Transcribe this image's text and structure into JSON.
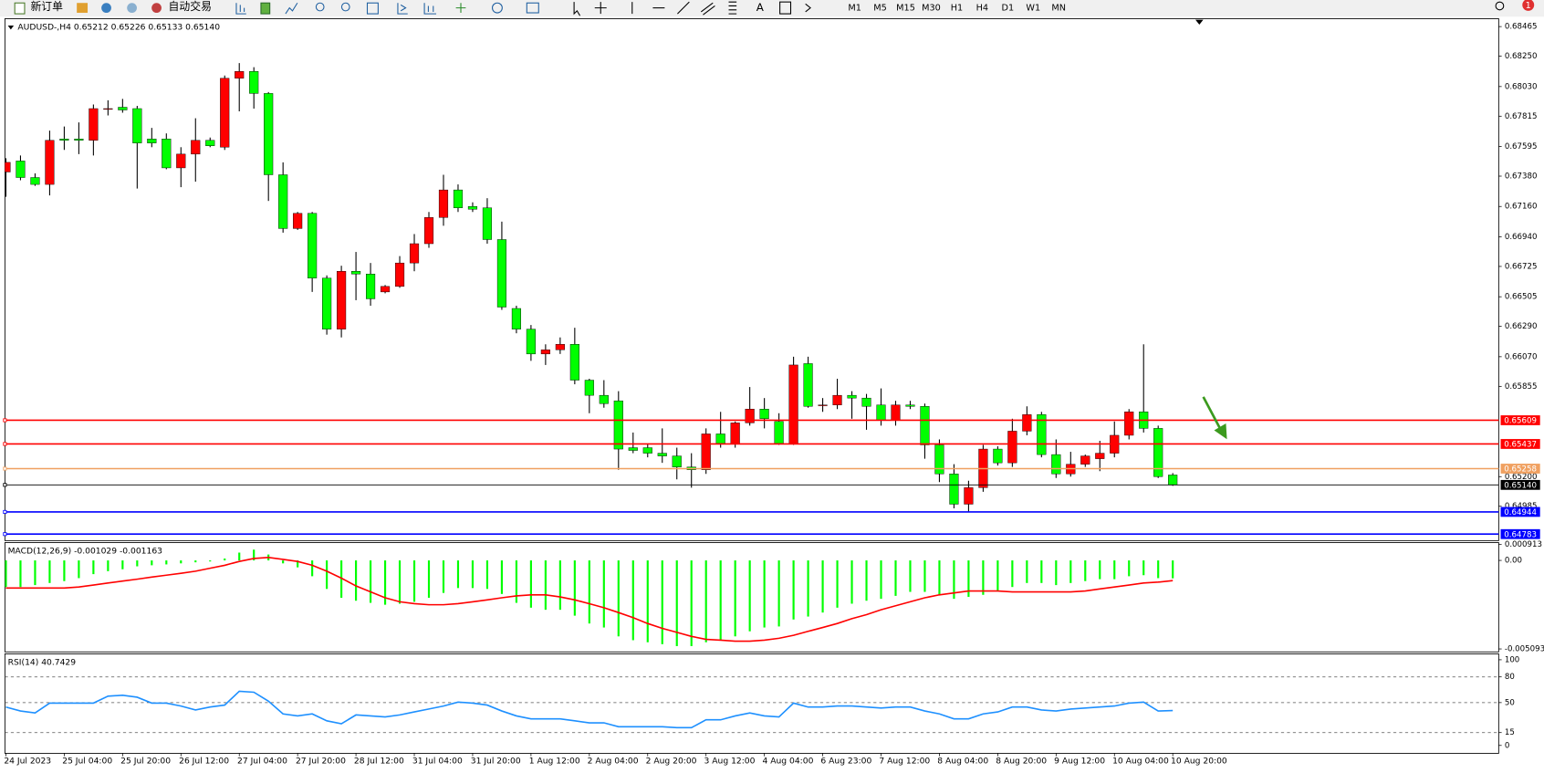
{
  "toolbar": {
    "new_order": "新订单",
    "auto_trading": "自动交易",
    "text_tool": "A",
    "timeframes": [
      "M1",
      "M5",
      "M15",
      "M30",
      "H1",
      "H4",
      "D1",
      "W1",
      "MN"
    ],
    "alerts": 1
  },
  "chart_data": [
    {
      "type": "candlestick",
      "title": "AUDUSD-,H4  0.65212 0.65226 0.65133 0.65140",
      "categories": [
        "24 Jul 2023",
        null,
        null,
        null,
        "25 Jul 04:00",
        null,
        null,
        null,
        "25 Jul 20:00",
        null,
        null,
        null,
        "26 Jul 12:00",
        null,
        null,
        null,
        "27 Jul 04:00",
        null,
        null,
        null,
        "27 Jul 20:00",
        null,
        null,
        null,
        "28 Jul 12:00",
        null,
        null,
        null,
        "31 Jul 04:00",
        null,
        null,
        null,
        "31 Jul 20:00",
        null,
        null,
        null,
        "1 Aug 12:00",
        null,
        null,
        null,
        "2 Aug 04:00",
        null,
        null,
        null,
        "2 Aug 20:00",
        null,
        null,
        null,
        "3 Aug 12:00",
        null,
        null,
        null,
        "4 Aug 04:00",
        null,
        null,
        null,
        "6 Aug 23:00",
        null,
        null,
        null,
        "7 Aug 12:00",
        null,
        null,
        null,
        "8 Aug 04:00",
        null,
        null,
        null,
        "8 Aug 20:00",
        null,
        null,
        null,
        "9 Aug 12:00",
        null,
        null,
        null,
        "10 Aug 04:00",
        null,
        null,
        null,
        "10 Aug 20:00"
      ],
      "open": [
        0.6741,
        0.6749,
        0.6737,
        0.6732,
        0.6765,
        0.6765,
        0.6764,
        0.6787,
        0.6788,
        0.6787,
        0.6765,
        0.6765,
        0.6744,
        0.6754,
        0.6764,
        0.6759,
        0.6809,
        0.6814,
        0.6798,
        0.6739,
        0.67,
        0.6711,
        0.6664,
        0.6627,
        0.6669,
        0.6667,
        0.6654,
        0.6658,
        0.6675,
        0.6689,
        0.6708,
        0.6728,
        0.6716,
        0.6715,
        0.6692,
        0.6642,
        0.6627,
        0.6609,
        0.6612,
        0.6616,
        0.659,
        0.6579,
        0.6575,
        0.6541,
        0.6541,
        0.6537,
        0.6535,
        0.6527,
        0.6525,
        0.6551,
        0.6544,
        0.6559,
        0.6569,
        0.656,
        0.6544,
        0.6602,
        0.6572,
        0.6572,
        0.6579,
        0.6577,
        0.6572,
        0.6561,
        0.6572,
        0.6571,
        0.6543,
        0.6522,
        0.65,
        0.6512,
        0.654,
        0.653,
        0.6553,
        0.6565,
        0.6536,
        0.6522,
        0.6529,
        0.6533,
        0.6537,
        0.655,
        0.6567,
        0.6555,
        0.65212
      ],
      "high": [
        0.6751,
        0.6753,
        0.674,
        0.6771,
        0.6774,
        0.6777,
        0.679,
        0.6793,
        0.6794,
        0.6789,
        0.6773,
        0.6769,
        0.6759,
        0.678,
        0.6766,
        0.6811,
        0.682,
        0.6817,
        0.6799,
        0.6748,
        0.6712,
        0.6712,
        0.6666,
        0.6673,
        0.6683,
        0.6675,
        0.6659,
        0.668,
        0.6696,
        0.6712,
        0.6739,
        0.6732,
        0.6719,
        0.6722,
        0.6705,
        0.6644,
        0.663,
        0.6616,
        0.6621,
        0.6628,
        0.6591,
        0.659,
        0.6582,
        0.6552,
        0.6544,
        0.6555,
        0.6541,
        0.6537,
        0.6555,
        0.6567,
        0.656,
        0.6585,
        0.6577,
        0.6566,
        0.6607,
        0.6607,
        0.6577,
        0.6591,
        0.6582,
        0.658,
        0.6584,
        0.6575,
        0.6575,
        0.6573,
        0.6547,
        0.6529,
        0.6517,
        0.6543,
        0.6542,
        0.6562,
        0.6571,
        0.6567,
        0.6547,
        0.6538,
        0.6536,
        0.6546,
        0.656,
        0.6569,
        0.6616,
        0.6557,
        0.65226
      ],
      "low": [
        0.6723,
        0.6735,
        0.6731,
        0.6724,
        0.6757,
        0.6754,
        0.6753,
        0.6782,
        0.6784,
        0.6729,
        0.6759,
        0.6743,
        0.673,
        0.6734,
        0.6759,
        0.6757,
        0.6785,
        0.6787,
        0.672,
        0.6697,
        0.6699,
        0.6654,
        0.6623,
        0.6621,
        0.6648,
        0.6644,
        0.6653,
        0.6657,
        0.6669,
        0.6686,
        0.6702,
        0.6712,
        0.6712,
        0.6689,
        0.6641,
        0.6624,
        0.6604,
        0.6601,
        0.6609,
        0.6587,
        0.6566,
        0.657,
        0.6525,
        0.6537,
        0.6534,
        0.653,
        0.6518,
        0.6512,
        0.6522,
        0.6541,
        0.6541,
        0.6557,
        0.6555,
        0.6543,
        0.6543,
        0.657,
        0.6567,
        0.6569,
        0.6562,
        0.6554,
        0.6557,
        0.6557,
        0.6569,
        0.6533,
        0.6516,
        0.6497,
        0.6494,
        0.6509,
        0.6528,
        0.6527,
        0.655,
        0.6534,
        0.6519,
        0.652,
        0.6527,
        0.6524,
        0.6534,
        0.6547,
        0.6552,
        0.6519,
        0.65133
      ],
      "close": [
        0.6748,
        0.6737,
        0.6732,
        0.6764,
        0.6764,
        0.6764,
        0.6787,
        0.6787,
        0.6786,
        0.6762,
        0.6762,
        0.6744,
        0.6754,
        0.6764,
        0.676,
        0.6809,
        0.6814,
        0.6798,
        0.6739,
        0.67,
        0.6711,
        0.6664,
        0.6627,
        0.6669,
        0.6667,
        0.6649,
        0.6658,
        0.6675,
        0.6689,
        0.6708,
        0.6728,
        0.6715,
        0.6714,
        0.6692,
        0.6643,
        0.6627,
        0.6609,
        0.6612,
        0.6616,
        0.659,
        0.6579,
        0.6573,
        0.654,
        0.6539,
        0.6537,
        0.6535,
        0.6527,
        0.6525,
        0.6551,
        0.6544,
        0.6559,
        0.6569,
        0.6562,
        0.6544,
        0.6601,
        0.6571,
        0.6572,
        0.6579,
        0.6577,
        0.6571,
        0.6561,
        0.6572,
        0.6571,
        0.6543,
        0.6522,
        0.65,
        0.6512,
        0.654,
        0.653,
        0.6553,
        0.6565,
        0.6536,
        0.6522,
        0.6529,
        0.6535,
        0.6537,
        0.655,
        0.6567,
        0.6555,
        0.652,
        0.6514
      ],
      "up_color": "#ff0000",
      "down_color": "#00ff00",
      "ylim": [
        0.64743,
        0.68515
      ],
      "yticks": [
        0.68465,
        {
          "value": 0.6825,
          "label": "0.68250"
        },
        {
          "value": 0.6803,
          "label": "0.68030"
        },
        0.67815,
        0.67595,
        {
          "value": 0.6738,
          "label": "0.67380"
        },
        {
          "value": 0.6716,
          "label": "0.67160"
        },
        {
          "value": 0.6694,
          "label": "0.66940"
        },
        0.66725,
        0.66505,
        {
          "value": 0.6629,
          "label": "0.66290"
        },
        {
          "value": 0.6607,
          "label": "0.66070"
        },
        0.65855,
        {
          "value": 0.652,
          "label": "0.65200"
        },
        0.64985
      ],
      "levels": {
        "values": [
          0.65609,
          0.65437,
          0.65258,
          0.6514,
          0.64944,
          0.64783
        ],
        "value_labels": [
          "0.65609",
          "0.65437",
          "0.65258",
          "0.65140",
          "0.64944",
          "0.64783"
        ],
        "colors": [
          "#ff0000",
          "#ff0000",
          "#f0a060",
          "#000000",
          "#0000ff",
          "#0000ff"
        ]
      }
    },
    {
      "type": "macd",
      "title": "MACD(12,26,9) -0.001029 -0.001163",
      "ylim": [
        -0.005093,
        0.000913
      ],
      "yticks": [
        0.000913,
        {
          "value": 0,
          "label": "0.00"
        },
        -0.005093
      ],
      "series": [
        {
          "style": "histogram",
          "color": "#00ff00",
          "values": [
            -0.00153,
            -0.00153,
            -0.00142,
            -0.0013,
            -0.00119,
            -0.00102,
            -0.00079,
            -0.00062,
            -0.00051,
            -0.00034,
            -0.00028,
            -0.00023,
            -0.00017,
            -0.00011,
            -6e-05,
            0.00011,
            0.00045,
            0.00062,
            0.00034,
            -0.00017,
            -0.0004,
            -0.00091,
            -0.00164,
            -0.00215,
            -0.00232,
            -0.00244,
            -0.00255,
            -0.00249,
            -0.00238,
            -0.00215,
            -0.00187,
            -0.00159,
            -0.00159,
            -0.00164,
            -0.00193,
            -0.00244,
            -0.00272,
            -0.00284,
            -0.00284,
            -0.00318,
            -0.00363,
            -0.00386,
            -0.00437,
            -0.00459,
            -0.00471,
            -0.00482,
            -0.00493,
            -0.00493,
            -0.00471,
            -0.00459,
            -0.00437,
            -0.00408,
            -0.00386,
            -0.0038,
            -0.0034,
            -0.00323,
            -0.003,
            -0.00272,
            -0.00249,
            -0.00232,
            -0.00221,
            -0.00204,
            -0.00181,
            -0.00181,
            -0.00198,
            -0.00221,
            -0.0021,
            -0.00198,
            -0.00176,
            -0.00153,
            -0.0013,
            -0.0013,
            -0.00142,
            -0.0013,
            -0.00119,
            -0.00108,
            -0.00108,
            -0.00091,
            -0.00085,
            -0.00102,
            -0.001029
          ]
        },
        {
          "style": "line",
          "color": "#ff0000",
          "values": [
            -0.00159,
            -0.00159,
            -0.00159,
            -0.00159,
            -0.00159,
            -0.00153,
            -0.00142,
            -0.0013,
            -0.00119,
            -0.00108,
            -0.00096,
            -0.00085,
            -0.00074,
            -0.00062,
            -0.00045,
            -0.00028,
            -6e-05,
            0.00011,
            0.00017,
            6e-05,
            -6e-05,
            -0.00028,
            -0.00062,
            -0.00102,
            -0.00147,
            -0.00181,
            -0.00215,
            -0.00238,
            -0.00249,
            -0.00255,
            -0.00255,
            -0.00249,
            -0.00238,
            -0.00227,
            -0.00215,
            -0.00204,
            -0.00198,
            -0.00198,
            -0.0021,
            -0.00227,
            -0.00249,
            -0.00272,
            -0.003,
            -0.00329,
            -0.00363,
            -0.00391,
            -0.00414,
            -0.00437,
            -0.00454,
            -0.00459,
            -0.00465,
            -0.00465,
            -0.00459,
            -0.00448,
            -0.00431,
            -0.00408,
            -0.00386,
            -0.00363,
            -0.00335,
            -0.00312,
            -0.00284,
            -0.00261,
            -0.00238,
            -0.00215,
            -0.00198,
            -0.00187,
            -0.00176,
            -0.00176,
            -0.00176,
            -0.00181,
            -0.00181,
            -0.00181,
            -0.00181,
            -0.00181,
            -0.00176,
            -0.00164,
            -0.00153,
            -0.00142,
            -0.0013,
            -0.00125,
            -0.001163
          ]
        }
      ]
    },
    {
      "type": "line",
      "title": "RSI(14) 40.7429",
      "ylim": [
        0,
        100
      ],
      "yticks": [
        100,
        80,
        50,
        15,
        0
      ],
      "series": [
        {
          "color": "#1e90ff",
          "values": [
            44.8,
            40.2,
            37.9,
            49.4,
            49.4,
            49.4,
            49.4,
            57.5,
            58.6,
            56.3,
            49.4,
            49.4,
            46.0,
            41.4,
            44.8,
            47.1,
            63.2,
            62.1,
            51.7,
            36.8,
            34.5,
            36.8,
            28.7,
            25.3,
            35.6,
            34.5,
            33.3,
            35.6,
            39.1,
            42.5,
            46.0,
            50.6,
            49.4,
            47.1,
            40.2,
            34.5,
            31.0,
            31.0,
            31.0,
            28.7,
            26.4,
            26.4,
            21.8,
            21.8,
            21.8,
            21.8,
            20.7,
            20.7,
            29.9,
            29.9,
            34.5,
            37.9,
            34.5,
            33.3,
            49.4,
            44.8,
            44.8,
            46.0,
            46.0,
            44.8,
            43.7,
            44.8,
            44.8,
            40.2,
            36.8,
            31.0,
            31.0,
            36.8,
            39.1,
            44.8,
            44.8,
            41.4,
            40.2,
            42.5,
            43.7,
            44.8,
            46.0,
            49.4,
            50.6,
            40.2,
            40.7429
          ]
        }
      ]
    }
  ]
}
